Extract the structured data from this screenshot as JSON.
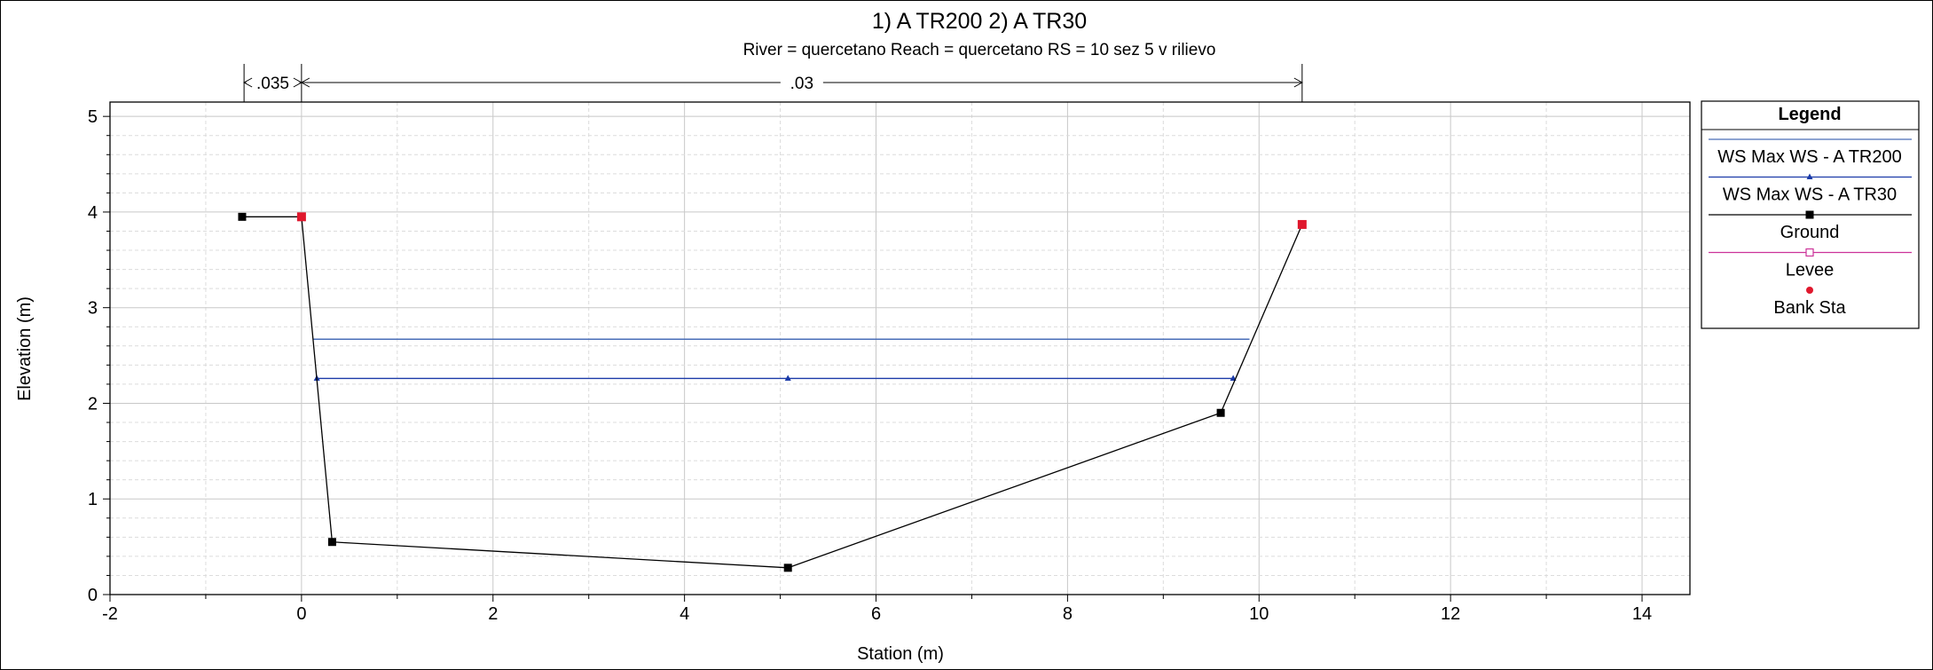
{
  "chart_data": {
    "type": "line",
    "title": "1) A TR200    2) A TR30",
    "subtitle": "River = quercetano   Reach = quercetano      RS = 10    sez 5 v rilievo",
    "xlabel": "Station (m)",
    "ylabel": "Elevation (m)",
    "xlim": [
      -2,
      14.5
    ],
    "ylim": [
      0,
      5.15
    ],
    "xticks": [
      "-2",
      "0",
      "2",
      "4",
      "6",
      "8",
      "10",
      "12",
      "14"
    ],
    "yticks": [
      "0",
      "1",
      "2",
      "3",
      "4",
      "5"
    ],
    "grid": true,
    "roughness": [
      {
        "label": ".035",
        "from": -0.6,
        "to": 0.0
      },
      {
        "label": ".03",
        "from": 0.0,
        "to": 10.45
      }
    ],
    "legend": {
      "title": "Legend",
      "position": "right",
      "entries": [
        {
          "label": "WS Max WS - A TR200",
          "color": "#4a6eb8",
          "marker": "none"
        },
        {
          "label": "WS Max WS - A TR30",
          "color": "#1a3aa8",
          "marker": "triangle"
        },
        {
          "label": "Ground",
          "color": "#000000",
          "marker": "square"
        },
        {
          "label": "Levee",
          "color": "#cc3399",
          "marker": "open-square"
        },
        {
          "label": "Bank Sta",
          "color": "#e0182d",
          "marker": "circle"
        }
      ]
    },
    "series": [
      {
        "name": "WS Max WS - A TR200",
        "x": [
          0.12,
          9.9
        ],
        "y": [
          2.67,
          2.67
        ]
      },
      {
        "name": "WS Max WS - A TR30",
        "x": [
          0.16,
          5.08,
          9.73
        ],
        "y": [
          2.26,
          2.26,
          2.26
        ]
      },
      {
        "name": "Ground",
        "x": [
          -0.62,
          0.0,
          0.32,
          5.08,
          9.6,
          10.45
        ],
        "y": [
          3.95,
          3.95,
          0.55,
          0.28,
          1.9,
          3.87
        ]
      },
      {
        "name": "Bank Sta",
        "x": [
          0.0,
          10.45
        ],
        "y": [
          3.95,
          3.87
        ]
      }
    ]
  }
}
